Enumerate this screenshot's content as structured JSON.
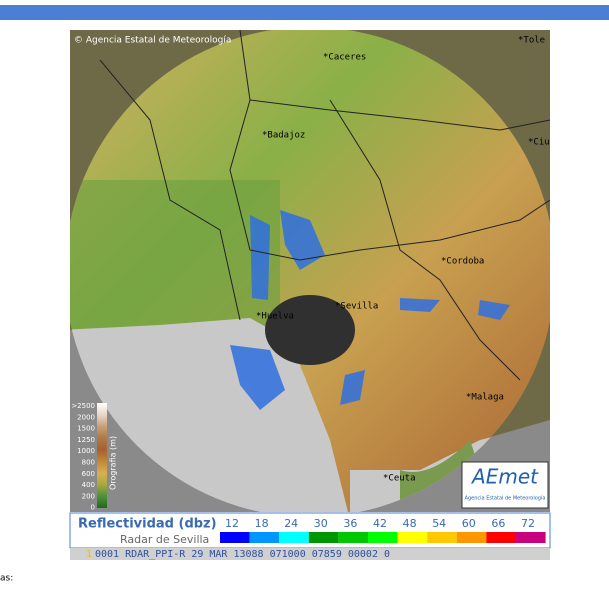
{
  "map": {
    "copyright": "© Agencia Estatal de Meteorología",
    "cities": [
      {
        "label": "*Caceres"
      },
      {
        "label": "*Tole"
      },
      {
        "label": "*Badajoz"
      },
      {
        "label": "*Ciu"
      },
      {
        "label": "*Cordoba"
      },
      {
        "label": "*Sevilla"
      },
      {
        "label": "*Huelva"
      },
      {
        "label": "*Malaga"
      },
      {
        "label": "*Ceuta"
      }
    ],
    "orography": {
      "title": "Orografia (m)",
      "labels": [
        ">2500",
        "2000",
        "1500",
        "1250",
        "1000",
        "800",
        "600",
        "400",
        "200",
        "0"
      ],
      "colors": [
        "#ffffff",
        "#e6d8c8",
        "#c8a078",
        "#b07848",
        "#a86030",
        "#c08838",
        "#d8b050",
        "#a8a840",
        "#509038",
        "#206820"
      ]
    },
    "logo": {
      "name": "AEmet",
      "subtitle": "Agencia Estatal de Meteorología"
    }
  },
  "legend": {
    "title": "Reflectividad (dbz)",
    "subtitle": "Radar de Sevilla",
    "items": [
      {
        "label": "12",
        "color": "#0000ff"
      },
      {
        "label": "18",
        "color": "#0096ff"
      },
      {
        "label": "24",
        "color": "#00ffff"
      },
      {
        "label": "30",
        "color": "#009600"
      },
      {
        "label": "36",
        "color": "#00c800"
      },
      {
        "label": "42",
        "color": "#00ff00"
      },
      {
        "label": "48",
        "color": "#ffff00"
      },
      {
        "label": "54",
        "color": "#ffc800"
      },
      {
        "label": "60",
        "color": "#ff9600"
      },
      {
        "label": "66",
        "color": "#ff0000"
      },
      {
        "label": "72",
        "color": "#c80080"
      }
    ]
  },
  "status": {
    "index": "1",
    "text": "0001 RDAR_PPI-R   29 MAR 13088 071000 07859 00002 0"
  },
  "footer": "as:"
}
